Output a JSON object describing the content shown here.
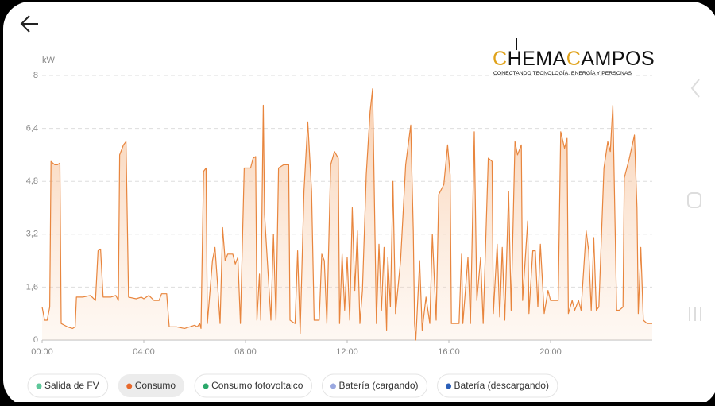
{
  "logo": {
    "parts": [
      "C",
      "HEMA",
      "C",
      "AMPOS"
    ],
    "tagline": "CONECTANDO TECNOLOGÍA, ENERGÍA Y PERSONAS"
  },
  "chart_data": {
    "type": "area",
    "y_label": "kW",
    "x": [
      0,
      0.1,
      0.2,
      0.3,
      0.35,
      0.5,
      0.6,
      0.7,
      0.75,
      1.0,
      1.2,
      1.3,
      1.35,
      1.6,
      1.9,
      2.1,
      2.2,
      2.3,
      2.4,
      2.7,
      2.9,
      3.0,
      3.05,
      3.2,
      3.3,
      3.4,
      3.7,
      3.9,
      4.0,
      4.2,
      4.4,
      4.6,
      4.7,
      4.9,
      5.0,
      5.3,
      5.6,
      5.8,
      6.0,
      6.1,
      6.2,
      6.25,
      6.35,
      6.45,
      6.5,
      6.7,
      6.8,
      6.9,
      7.0,
      7.1,
      7.2,
      7.3,
      7.5,
      7.6,
      7.7,
      7.8,
      7.95,
      8.2,
      8.3,
      8.4,
      8.45,
      8.55,
      8.6,
      8.65,
      8.7,
      8.75,
      9.0,
      9.1,
      9.2,
      9.3,
      9.5,
      9.7,
      9.75,
      9.95,
      10.05,
      10.15,
      10.3,
      10.45,
      10.6,
      10.7,
      10.9,
      11.0,
      11.1,
      11.2,
      11.35,
      11.5,
      11.65,
      11.7,
      11.8,
      11.9,
      12.0,
      12.1,
      12.2,
      12.3,
      12.4,
      12.5,
      12.6,
      12.75,
      12.9,
      13.0,
      13.15,
      13.25,
      13.35,
      13.45,
      13.55,
      13.6,
      13.7,
      13.8,
      13.9,
      14.1,
      14.3,
      14.5,
      14.6,
      14.65,
      14.7,
      14.85,
      14.95,
      15.1,
      15.25,
      15.35,
      15.5,
      15.6,
      15.8,
      15.95,
      16.05,
      16.1,
      16.4,
      16.5,
      16.55,
      16.75,
      16.85,
      17.0,
      17.1,
      17.25,
      17.35,
      17.55,
      17.7,
      17.75,
      17.9,
      18.0,
      18.1,
      18.2,
      18.35,
      18.45,
      18.6,
      18.7,
      18.85,
      18.9,
      19.1,
      19.15,
      19.3,
      19.4,
      19.5,
      19.6,
      19.75,
      19.9,
      20.0,
      20.3,
      20.4,
      20.55,
      20.65,
      20.7,
      20.85,
      20.95,
      21.1,
      21.2,
      21.4,
      21.5,
      21.6,
      21.7,
      21.8,
      21.9,
      22.1,
      22.25,
      22.35,
      22.45,
      22.6,
      22.7,
      22.85,
      22.9,
      23.1,
      23.3,
      23.4,
      23.45,
      23.55,
      23.65,
      23.8,
      24.0
    ],
    "series": [
      {
        "name": "Consumo",
        "color": "#e8853d",
        "values": [
          1.0,
          0.6,
          0.6,
          1.0,
          5.4,
          5.3,
          5.3,
          5.35,
          0.5,
          0.4,
          0.35,
          0.4,
          1.3,
          1.3,
          1.35,
          1.2,
          2.7,
          2.75,
          1.3,
          1.3,
          1.35,
          1.2,
          5.6,
          5.9,
          6.0,
          1.3,
          1.25,
          1.3,
          1.25,
          1.35,
          1.2,
          1.2,
          1.4,
          1.4,
          0.4,
          0.4,
          0.35,
          0.4,
          0.45,
          0.4,
          0.5,
          0.35,
          5.1,
          5.2,
          0.5,
          2.4,
          2.8,
          1.7,
          0.5,
          3.4,
          2.4,
          2.6,
          2.6,
          2.3,
          2.5,
          0.5,
          5.2,
          5.2,
          5.5,
          5.55,
          0.6,
          2.0,
          0.6,
          4.0,
          7.1,
          3.8,
          0.6,
          3.2,
          0.6,
          5.2,
          5.3,
          5.3,
          0.6,
          0.5,
          2.7,
          0.2,
          4.5,
          6.6,
          4.5,
          0.6,
          0.6,
          2.6,
          2.4,
          0.5,
          5.3,
          5.7,
          5.5,
          0.5,
          2.6,
          0.9,
          2.5,
          0.6,
          4.0,
          1.5,
          3.3,
          0.5,
          1.5,
          5.0,
          6.9,
          7.6,
          0.5,
          2.9,
          0.9,
          2.8,
          0.3,
          2.5,
          1.0,
          4.8,
          0.8,
          2.4,
          5.3,
          6.5,
          3.3,
          0.5,
          0.0,
          2.4,
          0.3,
          1.3,
          0.5,
          3.2,
          0.6,
          4.4,
          4.7,
          5.9,
          5.0,
          0.5,
          0.5,
          2.6,
          0.5,
          2.5,
          0.5,
          6.3,
          1.2,
          2.5,
          0.5,
          5.5,
          5.4,
          0.8,
          2.9,
          0.7,
          2.8,
          0.6,
          4.5,
          0.9,
          6.0,
          5.6,
          5.9,
          1.2,
          3.6,
          0.8,
          2.7,
          2.7,
          1.0,
          2.9,
          0.8,
          1.5,
          1.2,
          1.2,
          6.3,
          5.8,
          6.1,
          0.8,
          1.2,
          0.9,
          1.2,
          0.9,
          3.3,
          2.7,
          0.9,
          3.1,
          0.9,
          1.0,
          5.2,
          6.0,
          5.7,
          7.1,
          0.9,
          0.9,
          1.0,
          4.9,
          5.5,
          6.2,
          4.0,
          0.8,
          2.8,
          0.6,
          0.5,
          0.5
        ]
      }
    ],
    "xlim": [
      0,
      24
    ],
    "xticks": [
      {
        "value": 0,
        "label": "00:00"
      },
      {
        "value": 4,
        "label": "04:00"
      },
      {
        "value": 8,
        "label": "08:00"
      },
      {
        "value": 12,
        "label": "12:00"
      },
      {
        "value": 16,
        "label": "16:00"
      },
      {
        "value": 20,
        "label": "20:00"
      }
    ],
    "ylim": [
      0,
      8
    ],
    "yticks": [
      0,
      {
        "value": 1.6,
        "label": "1,6"
      },
      {
        "value": 3.2,
        "label": "3,2"
      },
      {
        "value": 4.8,
        "label": "4,8"
      },
      {
        "value": 6.4,
        "label": "6,4"
      },
      8
    ],
    "grid": true,
    "legend": [
      {
        "name": "Salida de FV",
        "color": "#5ec79a",
        "active": false
      },
      {
        "name": "Consumo",
        "color": "#e8692c",
        "active": true
      },
      {
        "name": "Consumo fotovoltaico",
        "color": "#2aa86a",
        "active": false
      },
      {
        "name": "Batería (cargando)",
        "color": "#9aa8e0",
        "active": false
      },
      {
        "name": "Batería (descargando)",
        "color": "#2b5fb8",
        "active": false
      }
    ]
  }
}
